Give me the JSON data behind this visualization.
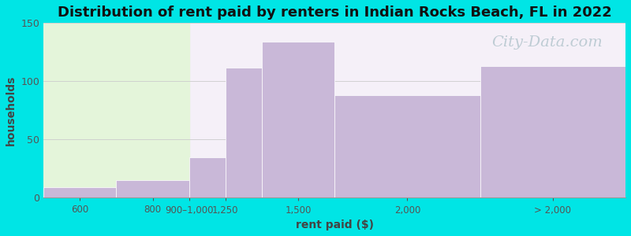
{
  "title": "Distribution of rent paid by renters in Indian Rocks Beach, FL in 2022",
  "xlabel": "rent paid ($)",
  "ylabel": "households",
  "bar_heights": [
    9,
    15,
    35,
    112,
    134,
    88,
    113
  ],
  "bar_left_edges": [
    0,
    1,
    2,
    2.5,
    3,
    4,
    6
  ],
  "bar_right_edges": [
    1,
    2,
    2.5,
    3,
    4,
    6,
    8
  ],
  "xtick_positions": [
    0.5,
    1.5,
    2,
    2.5,
    3.5,
    5,
    7
  ],
  "xtick_labels": [
    "600",
    "800",
    "900–1,000",
    "1,250",
    "1,500",
    "2,000",
    "> 2,000"
  ],
  "bar_color": "#c9b8d8",
  "background_outer": "#00e5e5",
  "background_plot_left": "#e4f5da",
  "background_plot_right": "#f5f0f8",
  "ylim": [
    0,
    150
  ],
  "yticks": [
    0,
    50,
    100,
    150
  ],
  "title_fontsize": 13,
  "axis_label_fontsize": 10,
  "watermark_text": "City-Data.com",
  "watermark_color": "#b8c8d0",
  "watermark_fontsize": 14,
  "green_boundary": 2
}
